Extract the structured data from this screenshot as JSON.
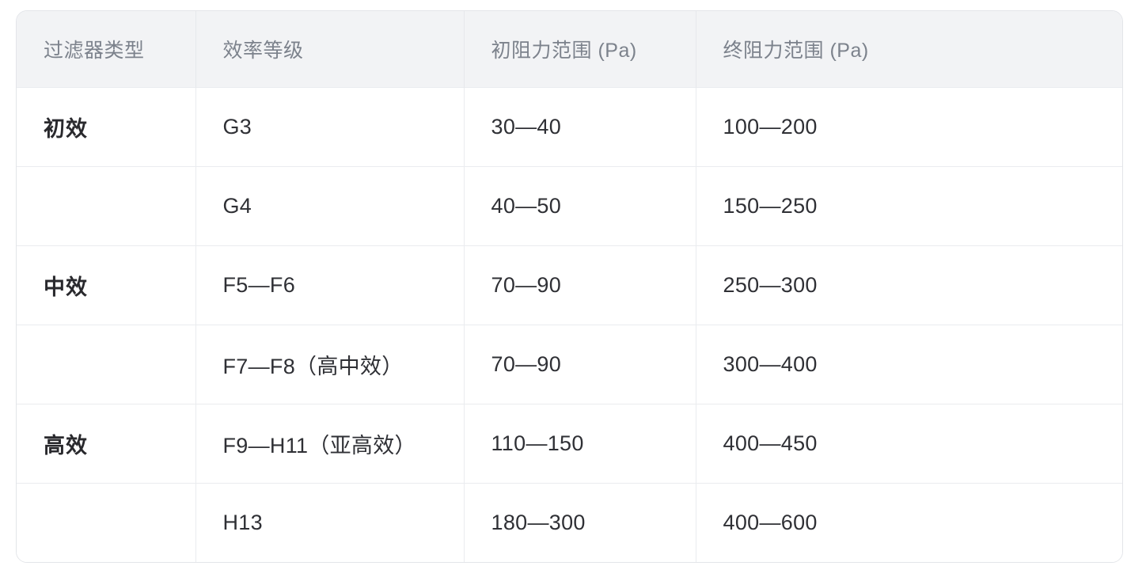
{
  "table": {
    "columns": [
      {
        "label": "过滤器类型"
      },
      {
        "label": "效率等级"
      },
      {
        "label": "初阻力范围 (Pa)"
      },
      {
        "label": "终阻力范围 (Pa)"
      }
    ],
    "rows": [
      {
        "type": "初效",
        "grade": "G3",
        "initial": "30—40",
        "final": "100—200"
      },
      {
        "type": "",
        "grade": "G4",
        "initial": "40—50",
        "final": "150—250"
      },
      {
        "type": "中效",
        "grade": "F5—F6",
        "initial": "70—90",
        "final": "250—300"
      },
      {
        "type": "",
        "grade": "F7—F8（高中效）",
        "initial": "70—90",
        "final": "300—400"
      },
      {
        "type": "高效",
        "grade": "F9—H11（亚高效）",
        "initial": "110—150",
        "final": "400—450"
      },
      {
        "type": "",
        "grade": "H13",
        "initial": "180—300",
        "final": "400—600"
      }
    ]
  },
  "colors": {
    "header_bg": "#f2f3f5",
    "header_text": "#7c828c",
    "body_text": "#2f3035",
    "border": "#eaecef",
    "outer_border": "#e3e5e9"
  }
}
